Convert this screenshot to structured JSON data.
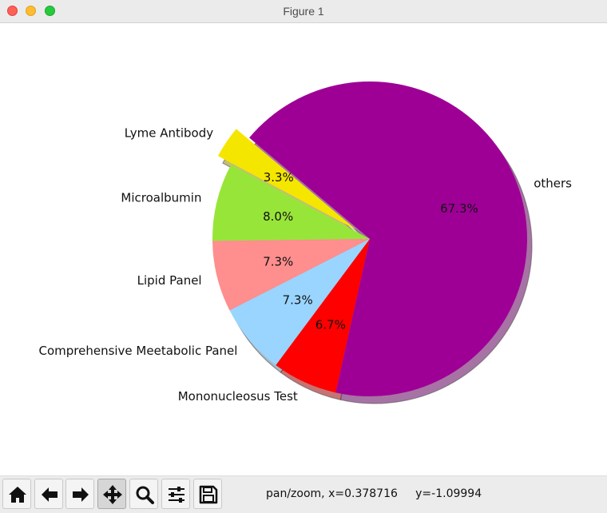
{
  "window": {
    "title": "Figure 1"
  },
  "chart_data": {
    "type": "pie",
    "slices": [
      {
        "label": "Lyme Antibody",
        "value": 3.3,
        "pct_label": "3.3%",
        "color": "#f5e600",
        "explode": true
      },
      {
        "label": "Microalbumin",
        "value": 8.0,
        "pct_label": "8.0%",
        "color": "#98e539"
      },
      {
        "label": "Lipid Panel",
        "value": 7.3,
        "pct_label": "7.3%",
        "color": "#ff8e8e"
      },
      {
        "label": "Comprehensive Meetabolic Panel",
        "value": 7.3,
        "pct_label": "7.3%",
        "color": "#99d5ff"
      },
      {
        "label": "Mononucleosus Test",
        "value": 6.7,
        "pct_label": "6.7%",
        "color": "#ff0000"
      },
      {
        "label": "others",
        "value": 67.3,
        "pct_label": "67.3%",
        "color": "#9e0096"
      }
    ],
    "shadow": true,
    "start_angle": 140
  },
  "toolbar": {
    "buttons": [
      {
        "name": "home-button",
        "icon": "home-icon"
      },
      {
        "name": "back-button",
        "icon": "arrow-left-icon"
      },
      {
        "name": "forward-button",
        "icon": "arrow-right-icon"
      },
      {
        "name": "pan-button",
        "icon": "move-icon",
        "active": true
      },
      {
        "name": "zoom-button",
        "icon": "magnifier-icon"
      },
      {
        "name": "configure-subplots-button",
        "icon": "sliders-icon"
      },
      {
        "name": "save-button",
        "icon": "floppy-disk-icon"
      }
    ],
    "status": "pan/zoom, x=0.378716     y=-1.09994"
  }
}
